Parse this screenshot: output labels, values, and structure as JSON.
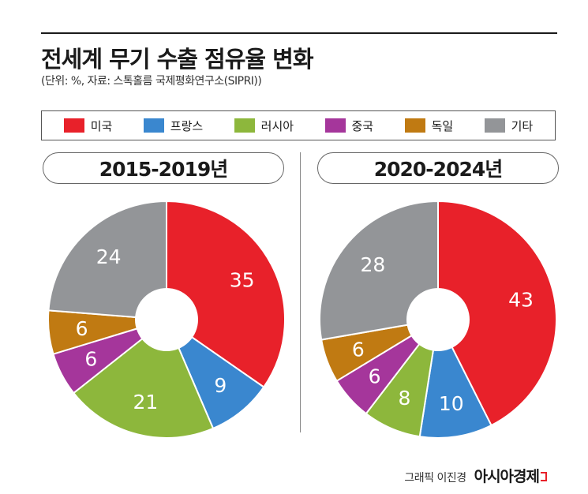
{
  "title": "전세계 무기 수출 점유율 변화",
  "subtitle": "(단위: %, 자료: 스톡홀름 국제평화연구소(SIPRI))",
  "legend": [
    {
      "label": "미국",
      "color": "#e8212a"
    },
    {
      "label": "프랑스",
      "color": "#3a87cf"
    },
    {
      "label": "러시아",
      "color": "#8db73c"
    },
    {
      "label": "중국",
      "color": "#a5369b"
    },
    {
      "label": "독일",
      "color": "#c07a12"
    },
    {
      "label": "기타",
      "color": "#939598"
    }
  ],
  "chart_data": [
    {
      "type": "pie",
      "title": "2015-2019년",
      "categories": [
        "미국",
        "프랑스",
        "러시아",
        "중국",
        "독일",
        "기타"
      ],
      "values": [
        35,
        9,
        21,
        6,
        6,
        24
      ],
      "colors": [
        "#e8212a",
        "#3a87cf",
        "#8db73c",
        "#a5369b",
        "#c07a12",
        "#939598"
      ]
    },
    {
      "type": "pie",
      "title": "2020-2024년",
      "categories": [
        "미국",
        "프랑스",
        "러시아",
        "중국",
        "독일",
        "기타"
      ],
      "values": [
        43,
        10,
        8,
        6,
        6,
        28
      ],
      "colors": [
        "#e8212a",
        "#3a87cf",
        "#8db73c",
        "#a5369b",
        "#c07a12",
        "#939598"
      ]
    }
  ],
  "credit": {
    "author": "그래픽 이진경",
    "brand": "아시아경제"
  }
}
